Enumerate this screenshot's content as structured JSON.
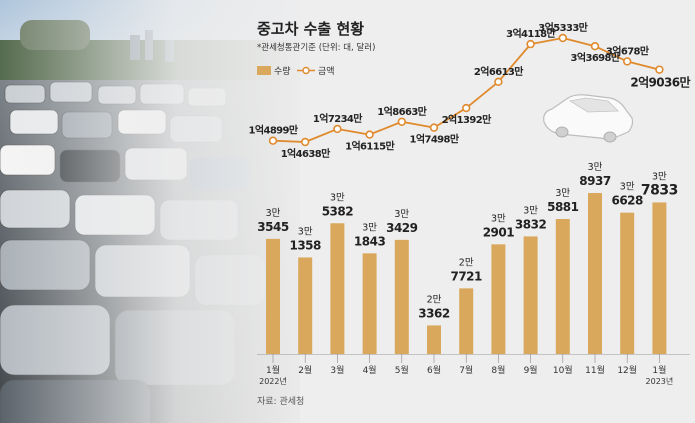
{
  "chart_data": {
    "type": "bar+line",
    "title": "중고차 수출 현황",
    "subtitle": "*관세청통관기준 (단위: 대, 달러)",
    "legend": [
      {
        "name": "수량",
        "marker": "bar",
        "color": "#d9a85c"
      },
      {
        "name": "금액",
        "marker": "line",
        "color": "#e08a2e"
      }
    ],
    "categories": [
      "1월",
      "2월",
      "3월",
      "4월",
      "5월",
      "6월",
      "7월",
      "8월",
      "9월",
      "10월",
      "11월",
      "12월",
      "1월"
    ],
    "year_labels": {
      "0": "2022년",
      "12": "2023년"
    },
    "series": [
      {
        "name": "수량",
        "type": "bar",
        "values": [
          33545,
          31358,
          35382,
          31843,
          33429,
          23362,
          27721,
          32901,
          33832,
          35881,
          38937,
          36628,
          37833
        ],
        "labels_top": [
          "3만",
          "3만",
          "3만",
          "3만",
          "3만",
          "2만",
          "2만",
          "3만",
          "3만",
          "3만",
          "3만",
          "3만",
          "3만"
        ],
        "labels_bottom": [
          "3545",
          "1358",
          "5382",
          "1843",
          "3429",
          "3362",
          "7721",
          "2901",
          "3832",
          "5881",
          "8937",
          "6628",
          "7833"
        ]
      },
      {
        "name": "금액",
        "type": "line",
        "values": [
          148990000,
          146380000,
          172340000,
          161150000,
          186630000,
          174980000,
          213920000,
          266130000,
          341180000,
          353330000,
          336980000,
          306780000,
          290360000
        ],
        "labels": [
          "1억4899만",
          "1억4638만",
          "1억7234만",
          "1억6115만",
          "1억8663만",
          "1억7498만",
          "2억1392만",
          "2억6613만",
          "3억4118만",
          "3억5333만",
          "3억3698만",
          "3억678만",
          "2억9036만"
        ]
      }
    ],
    "source": "자료: 관세청"
  },
  "colors": {
    "bar": "#d9a85c",
    "line": "#e08a2e",
    "background": "#eeeeee"
  }
}
